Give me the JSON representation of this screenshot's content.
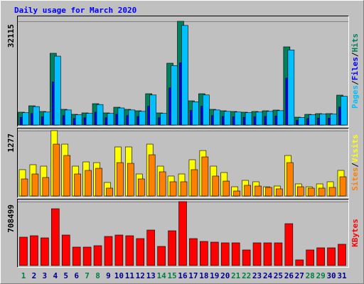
{
  "chart_data": [
    {
      "type": "bar",
      "title": "Daily usage for March 2020",
      "ylim": [
        0,
        32115
      ],
      "yticks": [
        32115
      ],
      "legend_separator": "/",
      "series": [
        {
          "name": "Hits",
          "color": "#00805c",
          "values": [
            3960,
            5940,
            4180,
            22216,
            4840,
            3300,
            3740,
            6600,
            3740,
            5500,
            4840,
            4400,
            9680,
            3740,
            19137,
            32115,
            7480,
            9680,
            4840,
            4400,
            4180,
            3960,
            4180,
            4400,
            4620,
            24197,
            2420,
            3300,
            3520,
            3520,
            9240
          ]
        },
        {
          "name": "Files",
          "color": "#0000ff",
          "values": [
            2380,
            3560,
            2510,
            13330,
            2900,
            1980,
            2240,
            3960,
            2240,
            3300,
            2900,
            2640,
            5810,
            2240,
            11480,
            19270,
            4490,
            5810,
            2900,
            2640,
            2510,
            2380,
            2510,
            2640,
            2770,
            14520,
            1450,
            1980,
            2110,
            2110,
            5540
          ]
        },
        {
          "name": "Pages",
          "color": "#00c0ff",
          "values": [
            3800,
            5700,
            4010,
            21330,
            4650,
            3170,
            3590,
            6340,
            3590,
            5280,
            4650,
            4220,
            9290,
            3590,
            18370,
            30830,
            7180,
            9290,
            4650,
            4220,
            4010,
            3800,
            4010,
            4220,
            4440,
            23230,
            2320,
            3170,
            3380,
            3380,
            8870
          ]
        }
      ]
    },
    {
      "type": "bar",
      "ylim": [
        0,
        1277
      ],
      "yticks": [
        1277
      ],
      "legend_separator": "/",
      "series": [
        {
          "name": "Visits",
          "color": "#ffff00",
          "values": [
            514,
            611,
            583,
            1277,
            1013,
            583,
            666,
            652,
            264,
            958,
            958,
            430,
            1013,
            583,
            389,
            430,
            708,
            888,
            583,
            458,
            180,
            305,
            278,
            180,
            194,
            791,
            236,
            180,
            236,
            278,
            500
          ]
        },
        {
          "name": "Sites",
          "color": "#ff8000",
          "values": [
            333,
            430,
            361,
            1013,
            791,
            430,
            500,
            541,
            153,
            652,
            638,
            333,
            805,
            472,
            278,
            278,
            514,
            763,
            389,
            291,
            97,
            208,
            194,
            167,
            139,
            652,
            180,
            153,
            153,
            167,
            375
          ]
        }
      ]
    },
    {
      "type": "bar",
      "ylim": [
        0,
        708499
      ],
      "yticks": [
        708499
      ],
      "categories": [
        "1",
        "2",
        "3",
        "4",
        "5",
        "6",
        "7",
        "8",
        "9",
        "10",
        "11",
        "12",
        "13",
        "14",
        "15",
        "16",
        "17",
        "18",
        "19",
        "20",
        "21",
        "22",
        "23",
        "24",
        "25",
        "26",
        "27",
        "28",
        "29",
        "30",
        "31"
      ],
      "category_colors": [
        "#008040",
        "#00008b",
        "#00008b",
        "#00008b",
        "#00008b",
        "#00008b",
        "#008040",
        "#008040",
        "#00008b",
        "#00008b",
        "#00008b",
        "#00008b",
        "#00008b",
        "#008040",
        "#008040",
        "#00008b",
        "#00008b",
        "#00008b",
        "#00008b",
        "#00008b",
        "#008040",
        "#008040",
        "#00008b",
        "#00008b",
        "#00008b",
        "#00008b",
        "#00008b",
        "#008040",
        "#008040",
        "#00008b",
        "#00008b"
      ],
      "series": [
        {
          "name": "KBytes",
          "color": "#ff0000",
          "values": [
            314888,
            330633,
            307016,
            629777,
            338505,
            204677,
            204677,
            220422,
            322761,
            338505,
            330633,
            299144,
            393611,
            212550,
            385738,
            708499,
            299144,
            267655,
            259783,
            251911,
            251911,
            173189,
            251911,
            251911,
            251911,
            464460,
            62977,
            173189,
            196805,
            196805,
            236166
          ]
        }
      ]
    }
  ]
}
